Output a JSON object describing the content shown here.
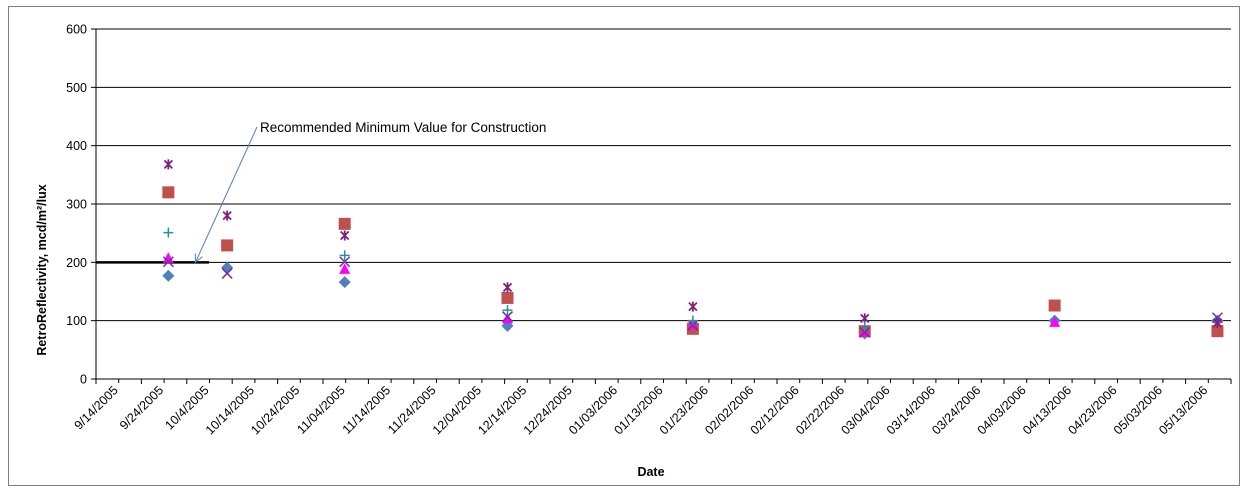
{
  "chart_data": {
    "type": "scatter",
    "xlabel": "Date",
    "ylabel": "RetroReflectivity,  mcd/m²/lux",
    "ylim": [
      0,
      600
    ],
    "yticks": [
      0,
      100,
      200,
      300,
      400,
      500,
      600
    ],
    "xlim": [
      "2005-09-14",
      "2006-05-23"
    ],
    "xtick_labels": [
      "9/14/2005",
      "9/24/2005",
      "10/4/2005",
      "10/14/2005",
      "10/24/2005",
      "11/04/2005",
      "11/14/2005",
      "11/24/2005",
      "12/04/2005",
      "12/14/2005",
      "12/24/2005",
      "01/03/2006",
      "01/13/2006",
      "01/23/2006",
      "02/02/2006",
      "02/12/2006",
      "02/22/2006",
      "03/04/2006",
      "03/14/2006",
      "03/24/2006",
      "04/03/2006",
      "04/13/2006",
      "04/23/2006",
      "05/03/2006",
      "05/13/2006"
    ],
    "grid": "horizontal",
    "legend": "none",
    "series": [
      {
        "marker": "diamond",
        "color": "#4f81bd",
        "x": [
          "2005-09-30",
          "2005-10-13",
          "2005-11-08",
          "2005-12-14",
          "2006-01-24",
          "2006-03-03",
          "2006-04-14",
          "2006-05-20"
        ],
        "y": [
          177,
          191,
          166,
          91,
          93,
          78,
          100,
          100
        ]
      },
      {
        "marker": "square",
        "color": "#c0504d",
        "x": [
          "2005-09-30",
          "2005-10-13",
          "2005-11-08",
          "2005-12-14",
          "2006-01-24",
          "2006-03-03",
          "2006-04-14",
          "2006-05-20"
        ],
        "y": [
          320,
          229,
          266,
          139,
          86,
          82,
          126,
          82
        ]
      },
      {
        "marker": "triangle",
        "color": "#ff00ff",
        "x": [
          "2005-09-30",
          "2005-11-08",
          "2005-12-14",
          "2006-01-24",
          "2006-03-03",
          "2006-04-14"
        ],
        "y": [
          207,
          188,
          103,
          93,
          80,
          97
        ]
      },
      {
        "marker": "x",
        "color": "#7030a0",
        "x": [
          "2005-09-30",
          "2005-10-13",
          "2005-11-08",
          "2005-12-14",
          "2006-01-24",
          "2006-03-03",
          "2006-05-20"
        ],
        "y": [
          201,
          181,
          201,
          107,
          92,
          80,
          105
        ]
      },
      {
        "marker": "star",
        "color": "#7f1f7f",
        "x": [
          "2005-09-30",
          "2005-10-13",
          "2005-11-08",
          "2005-12-14",
          "2006-01-24",
          "2006-03-03",
          "2006-05-20"
        ],
        "y": [
          368,
          280,
          246,
          157,
          124,
          104,
          96
        ]
      },
      {
        "marker": "plus",
        "color": "#2c8f97",
        "x": [
          "2005-09-30",
          "2005-11-08",
          "2005-12-14",
          "2006-01-24",
          "2006-03-03"
        ],
        "y": [
          251,
          212,
          118,
          100,
          90
        ]
      }
    ],
    "reference_line": {
      "value": 200,
      "x_from": "2005-09-14",
      "x_to": "2005-10-09"
    },
    "annotation": {
      "text": "Recommended Minimum Value for Construction",
      "points_to": {
        "x": "2005-10-06",
        "y": 200
      }
    }
  }
}
